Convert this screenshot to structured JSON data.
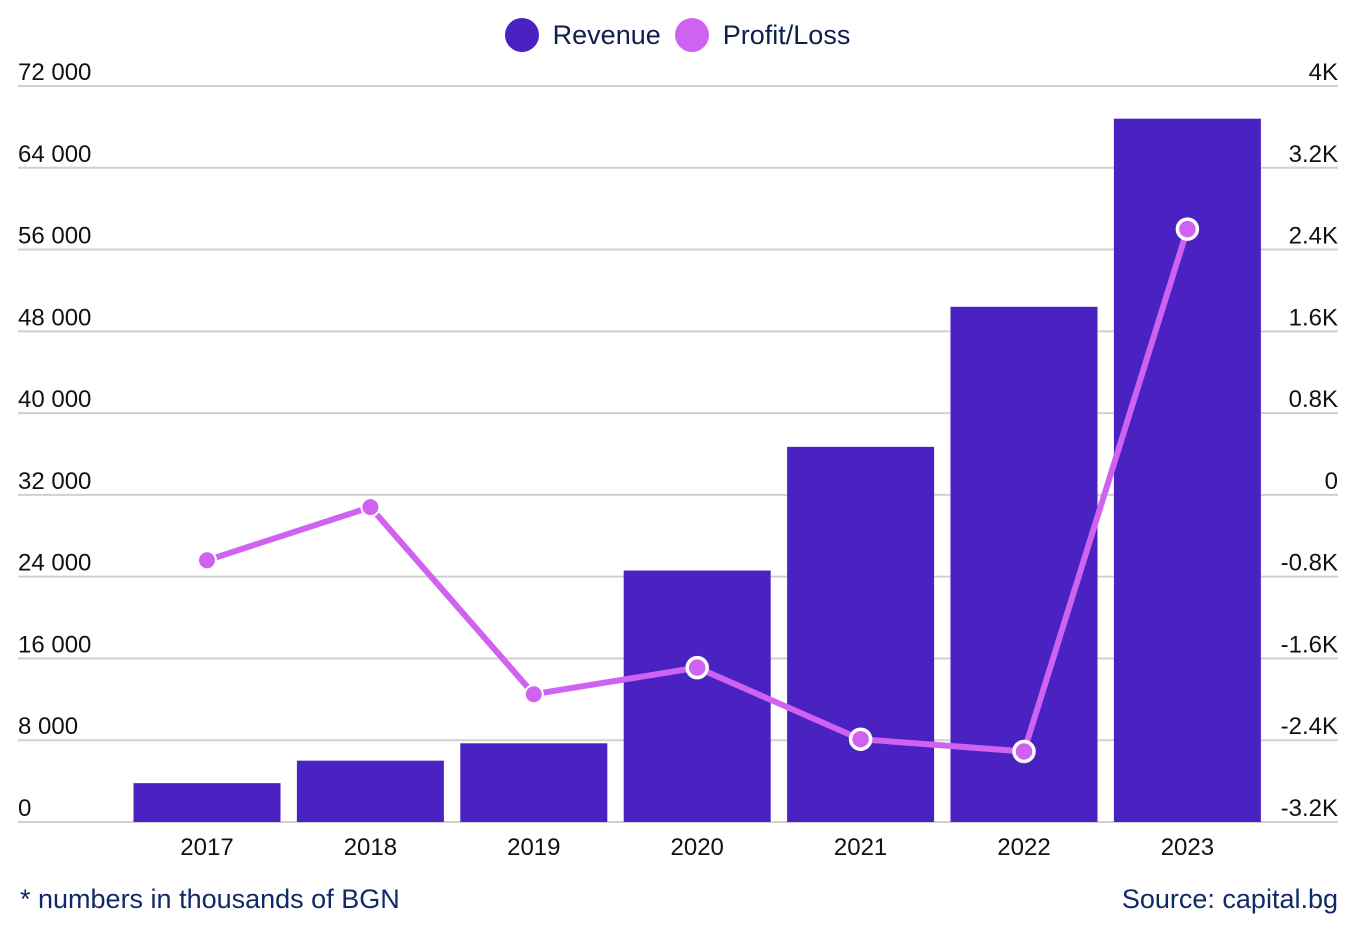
{
  "chart_data": {
    "type": "bar+line",
    "categories": [
      "2017",
      "2018",
      "2019",
      "2020",
      "2021",
      "2022",
      "2023"
    ],
    "series": [
      {
        "name": "Revenue",
        "type": "bar",
        "axis": "left",
        "color": "#4b22c2",
        "values": [
          3800,
          6000,
          7700,
          24600,
          36700,
          50400,
          68800
        ]
      },
      {
        "name": "Profit/Loss",
        "type": "line",
        "axis": "right",
        "color": "#d062f2",
        "values": [
          -0.64,
          -0.12,
          -1.95,
          -1.69,
          -2.39,
          -2.51,
          2.6
        ]
      }
    ],
    "left_axis": {
      "range": [
        0,
        72000
      ],
      "ticks": [
        0,
        8000,
        16000,
        24000,
        32000,
        40000,
        48000,
        56000,
        64000,
        72000
      ],
      "tick_labels": [
        "0",
        "8 000",
        "16 000",
        "24 000",
        "32 000",
        "40 000",
        "48 000",
        "56 000",
        "64 000",
        "72 000"
      ]
    },
    "right_axis": {
      "range": [
        -3.2,
        4
      ],
      "unit": "K",
      "tick_labels": [
        "-3.2K",
        "-2.4K",
        "-1.6K",
        "-0.8K",
        "0",
        "0.8K",
        "1.6K",
        "2.4K",
        "3.2K",
        "4K"
      ]
    },
    "grid": true,
    "legend_position": "top-center",
    "footnote": "* numbers in thousands of BGN",
    "source": "Source: capital.bg"
  }
}
